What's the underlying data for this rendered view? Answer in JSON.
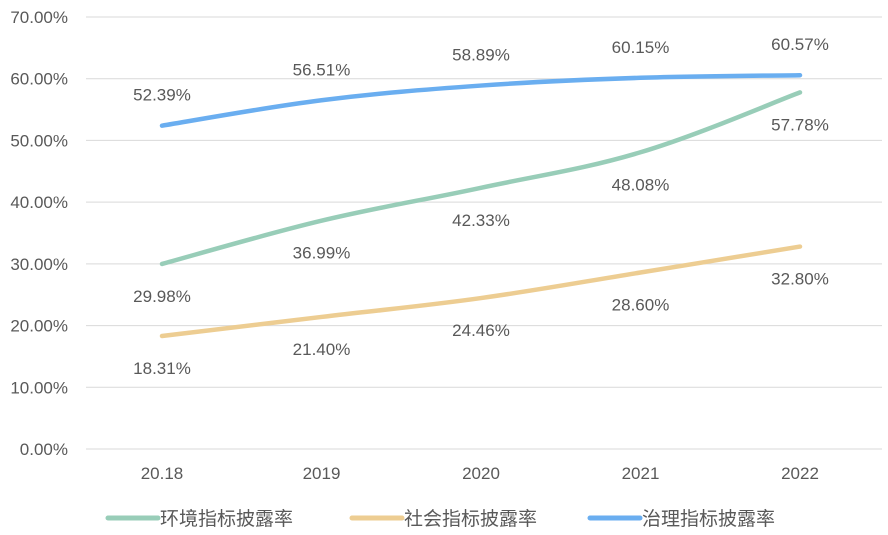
{
  "chart_data": {
    "type": "line",
    "categories": [
      "20.18",
      "2019",
      "2020",
      "2021",
      "2022"
    ],
    "yticks": [
      "0.00%",
      "10.00%",
      "20.00%",
      "30.00%",
      "40.00%",
      "50.00%",
      "60.00%",
      "70.00%"
    ],
    "ylim": [
      0,
      70
    ],
    "grid": true,
    "legend_position": "bottom",
    "series": [
      {
        "name": "环境指标披露率",
        "color": "#98CDB8",
        "values": [
          29.98,
          36.99,
          42.33,
          48.08,
          57.78
        ],
        "labels": [
          "29.98%",
          "36.99%",
          "42.33%",
          "48.08%",
          "57.78%"
        ],
        "label_position": [
          "below",
          "below",
          "below",
          "below",
          "below"
        ]
      },
      {
        "name": "社会指标披露率",
        "color": "#EDCD92",
        "values": [
          18.31,
          21.4,
          24.46,
          28.6,
          32.8
        ],
        "labels": [
          "18.31%",
          "21.40%",
          "24.46%",
          "28.60%",
          "32.80%"
        ],
        "label_position": [
          "below",
          "below",
          "below",
          "below",
          "below"
        ]
      },
      {
        "name": "治理指标披露率",
        "color": "#6AAEF0",
        "values": [
          52.39,
          56.51,
          58.89,
          60.15,
          60.57
        ],
        "labels": [
          "52.39%",
          "56.51%",
          "58.89%",
          "60.15%",
          "60.57%"
        ],
        "label_position": [
          "above",
          "above",
          "above",
          "above",
          "above"
        ]
      }
    ]
  }
}
